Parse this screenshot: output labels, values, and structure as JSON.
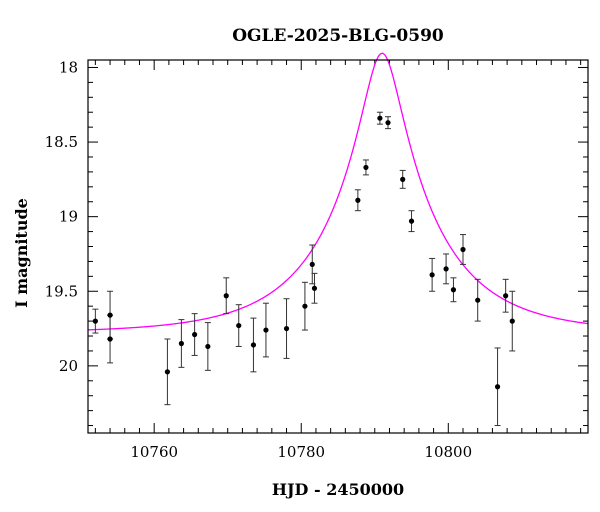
{
  "chart_data": {
    "type": "scatter",
    "title": "OGLE-2025-BLG-0590",
    "xlabel": "HJD - 2450000",
    "ylabel": "I magnitude",
    "xlim": [
      10751,
      10819
    ],
    "ylim": [
      20.45,
      17.95
    ],
    "y_inverted": true,
    "xticks": [
      10760,
      10780,
      10800
    ],
    "yticks": [
      18,
      18.5,
      19,
      19.5,
      20
    ],
    "x_minor_step": 2,
    "y_minor_step": 0.1,
    "grid": false,
    "legend": "none",
    "colors": {
      "points": "#000000",
      "model": "#ff00ff",
      "frame": "#000000"
    },
    "model": {
      "t0": 10791,
      "u0": 0.18,
      "tE": 14,
      "baseline": 19.78
    },
    "series": [
      {
        "type": "errorbar",
        "points": [
          {
            "x": 10752.0,
            "y": 19.7,
            "err": 0.08
          },
          {
            "x": 10754.0,
            "y": 19.66,
            "err": 0.16
          },
          {
            "x": 10754.0,
            "y": 19.82,
            "err": 0.16
          },
          {
            "x": 10761.8,
            "y": 20.04,
            "err": 0.22
          },
          {
            "x": 10763.7,
            "y": 19.85,
            "err": 0.16
          },
          {
            "x": 10765.5,
            "y": 19.79,
            "err": 0.14
          },
          {
            "x": 10767.3,
            "y": 19.87,
            "err": 0.16
          },
          {
            "x": 10769.8,
            "y": 19.53,
            "err": 0.12
          },
          {
            "x": 10771.5,
            "y": 19.73,
            "err": 0.14
          },
          {
            "x": 10773.5,
            "y": 19.86,
            "err": 0.18
          },
          {
            "x": 10775.2,
            "y": 19.76,
            "err": 0.18
          },
          {
            "x": 10778.0,
            "y": 19.75,
            "err": 0.2
          },
          {
            "x": 10780.5,
            "y": 19.6,
            "err": 0.16
          },
          {
            "x": 10781.5,
            "y": 19.32,
            "err": 0.13
          },
          {
            "x": 10781.8,
            "y": 19.48,
            "err": 0.1
          },
          {
            "x": 10787.7,
            "y": 18.89,
            "err": 0.07
          },
          {
            "x": 10788.8,
            "y": 18.67,
            "err": 0.05
          },
          {
            "x": 10790.7,
            "y": 18.34,
            "err": 0.04
          },
          {
            "x": 10791.8,
            "y": 18.37,
            "err": 0.04
          },
          {
            "x": 10793.8,
            "y": 18.75,
            "err": 0.06
          },
          {
            "x": 10795.0,
            "y": 19.03,
            "err": 0.07
          },
          {
            "x": 10797.8,
            "y": 19.39,
            "err": 0.11
          },
          {
            "x": 10799.7,
            "y": 19.35,
            "err": 0.1
          },
          {
            "x": 10800.7,
            "y": 19.49,
            "err": 0.08
          },
          {
            "x": 10802.0,
            "y": 19.22,
            "err": 0.1
          },
          {
            "x": 10804.0,
            "y": 19.56,
            "err": 0.14
          },
          {
            "x": 10806.7,
            "y": 20.14,
            "err": 0.26
          },
          {
            "x": 10807.8,
            "y": 19.53,
            "err": 0.11
          },
          {
            "x": 10808.7,
            "y": 19.7,
            "err": 0.2
          }
        ]
      }
    ]
  }
}
